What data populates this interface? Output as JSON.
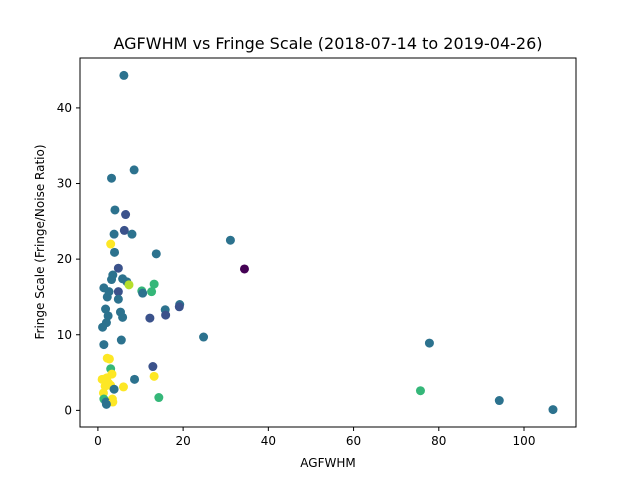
{
  "chart_data": {
    "type": "scatter",
    "title": "AGFWHM vs Fringe Scale (2018-07-14 to 2019-04-26)",
    "xlabel": "AGFWHM",
    "ylabel": "Fringe Scale (Fringe/Noise Ratio)",
    "xlim": [
      -4.2,
      112.2
    ],
    "ylim": [
      -2.2,
      46.6
    ],
    "xticks": [
      0,
      20,
      40,
      60,
      80,
      100
    ],
    "yticks": [
      0,
      10,
      20,
      30,
      40
    ],
    "grid": false,
    "legend": "none",
    "colormap": "viridis",
    "points": [
      {
        "x": 6.1,
        "y": 44.3,
        "c": "#2c728e"
      },
      {
        "x": 8.5,
        "y": 31.8,
        "c": "#2c728e"
      },
      {
        "x": 3.2,
        "y": 30.7,
        "c": "#2c728e"
      },
      {
        "x": 4.0,
        "y": 26.5,
        "c": "#2c728e"
      },
      {
        "x": 6.5,
        "y": 25.9,
        "c": "#3b528b"
      },
      {
        "x": 6.2,
        "y": 23.8,
        "c": "#3b528b"
      },
      {
        "x": 8.0,
        "y": 23.3,
        "c": "#2c728e"
      },
      {
        "x": 3.8,
        "y": 23.3,
        "c": "#2c728e"
      },
      {
        "x": 31.1,
        "y": 22.5,
        "c": "#2c728e"
      },
      {
        "x": 3.0,
        "y": 22.0,
        "c": "#fde725"
      },
      {
        "x": 3.9,
        "y": 20.9,
        "c": "#2c728e"
      },
      {
        "x": 13.7,
        "y": 20.7,
        "c": "#2c728e"
      },
      {
        "x": 4.8,
        "y": 18.8,
        "c": "#3b528b"
      },
      {
        "x": 34.4,
        "y": 18.7,
        "c": "#440154"
      },
      {
        "x": 3.5,
        "y": 17.9,
        "c": "#2c728e"
      },
      {
        "x": 3.2,
        "y": 17.3,
        "c": "#2c728e"
      },
      {
        "x": 5.8,
        "y": 17.4,
        "c": "#2c728e"
      },
      {
        "x": 6.8,
        "y": 17.0,
        "c": "#2c728e"
      },
      {
        "x": 7.3,
        "y": 16.6,
        "c": "#b5de2b"
      },
      {
        "x": 13.2,
        "y": 16.7,
        "c": "#35b779"
      },
      {
        "x": 1.4,
        "y": 16.2,
        "c": "#2c728e"
      },
      {
        "x": 2.6,
        "y": 15.7,
        "c": "#2c728e"
      },
      {
        "x": 4.8,
        "y": 15.7,
        "c": "#3b528b"
      },
      {
        "x": 10.3,
        "y": 15.8,
        "c": "#35b779"
      },
      {
        "x": 10.5,
        "y": 15.5,
        "c": "#2c728e"
      },
      {
        "x": 12.6,
        "y": 15.7,
        "c": "#35b779"
      },
      {
        "x": 2.2,
        "y": 15.0,
        "c": "#2c728e"
      },
      {
        "x": 4.8,
        "y": 14.7,
        "c": "#2c728e"
      },
      {
        "x": 19.2,
        "y": 14.0,
        "c": "#2c728e"
      },
      {
        "x": 19.1,
        "y": 13.7,
        "c": "#3b528b"
      },
      {
        "x": 1.8,
        "y": 13.4,
        "c": "#2c728e"
      },
      {
        "x": 15.8,
        "y": 13.3,
        "c": "#2c728e"
      },
      {
        "x": 5.3,
        "y": 13.0,
        "c": "#2c728e"
      },
      {
        "x": 15.9,
        "y": 12.6,
        "c": "#3b528b"
      },
      {
        "x": 5.8,
        "y": 12.3,
        "c": "#2c728e"
      },
      {
        "x": 12.2,
        "y": 12.2,
        "c": "#3b528b"
      },
      {
        "x": 2.4,
        "y": 12.5,
        "c": "#2c728e"
      },
      {
        "x": 2.0,
        "y": 11.6,
        "c": "#2c728e"
      },
      {
        "x": 1.1,
        "y": 11.0,
        "c": "#2c728e"
      },
      {
        "x": 24.8,
        "y": 9.7,
        "c": "#2c728e"
      },
      {
        "x": 5.5,
        "y": 9.3,
        "c": "#2c728e"
      },
      {
        "x": 1.4,
        "y": 8.7,
        "c": "#2c728e"
      },
      {
        "x": 77.8,
        "y": 8.9,
        "c": "#2c728e"
      },
      {
        "x": 2.2,
        "y": 6.9,
        "c": "#fde725"
      },
      {
        "x": 2.7,
        "y": 6.8,
        "c": "#fde725"
      },
      {
        "x": 12.9,
        "y": 5.8,
        "c": "#3b528b"
      },
      {
        "x": 3.0,
        "y": 5.5,
        "c": "#35b779"
      },
      {
        "x": 3.3,
        "y": 4.8,
        "c": "#fde725"
      },
      {
        "x": 13.2,
        "y": 4.5,
        "c": "#fde725"
      },
      {
        "x": 2.1,
        "y": 4.3,
        "c": "#fde725"
      },
      {
        "x": 1.0,
        "y": 4.1,
        "c": "#fde725"
      },
      {
        "x": 8.6,
        "y": 4.1,
        "c": "#2c728e"
      },
      {
        "x": 2.5,
        "y": 3.6,
        "c": "#fde725"
      },
      {
        "x": 3.0,
        "y": 3.3,
        "c": "#fde725"
      },
      {
        "x": 1.7,
        "y": 3.2,
        "c": "#fde725"
      },
      {
        "x": 6.0,
        "y": 3.1,
        "c": "#fde725"
      },
      {
        "x": 3.8,
        "y": 2.8,
        "c": "#2c728e"
      },
      {
        "x": 75.7,
        "y": 2.6,
        "c": "#35b779"
      },
      {
        "x": 1.3,
        "y": 2.3,
        "c": "#fde725"
      },
      {
        "x": 14.3,
        "y": 1.7,
        "c": "#35b779"
      },
      {
        "x": 1.4,
        "y": 1.5,
        "c": "#35b779"
      },
      {
        "x": 3.4,
        "y": 1.5,
        "c": "#fde725"
      },
      {
        "x": 94.2,
        "y": 1.3,
        "c": "#2c728e"
      },
      {
        "x": 1.9,
        "y": 1.1,
        "c": "#2c728e"
      },
      {
        "x": 3.5,
        "y": 1.1,
        "c": "#fde725"
      },
      {
        "x": 2.0,
        "y": 0.8,
        "c": "#2c728e"
      },
      {
        "x": 106.8,
        "y": 0.1,
        "c": "#2c728e"
      }
    ]
  }
}
